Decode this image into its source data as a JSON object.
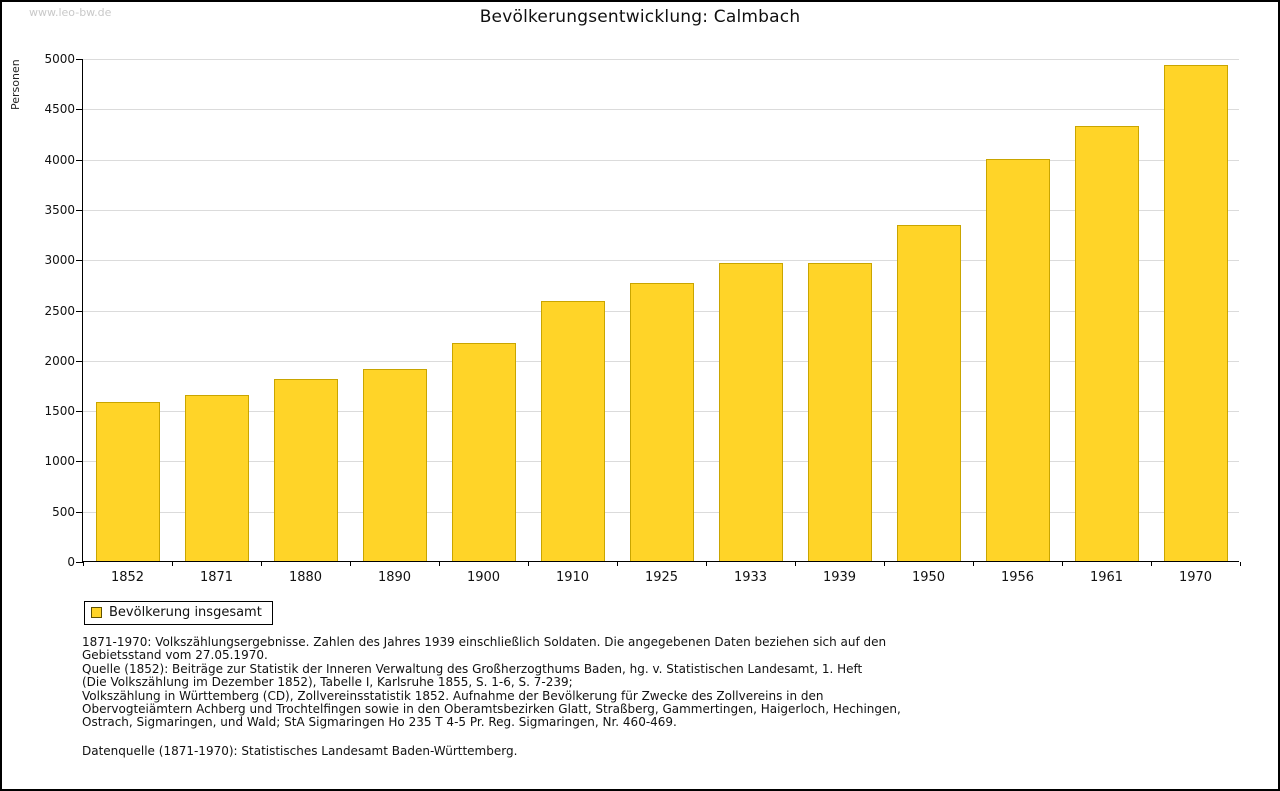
{
  "watermark": "www.leo-bw.de",
  "title": "Bevölkerungsentwicklung: Calmbach",
  "legend": {
    "label": "Bevölkerung insgesamt"
  },
  "colors": {
    "bar_fill": "#FFD428",
    "bar_border": "#C9A500",
    "gridline": "#DBDBDB",
    "axis": "#000000",
    "watermark": "#C9C9C9"
  },
  "chart_data": {
    "type": "bar",
    "title": "Bevölkerungsentwicklung: Calmbach",
    "xlabel": "",
    "ylabel": "Personen",
    "categories": [
      "1852",
      "1871",
      "1880",
      "1890",
      "1900",
      "1910",
      "1925",
      "1933",
      "1939",
      "1950",
      "1956",
      "1961",
      "1970"
    ],
    "values": [
      1580,
      1650,
      1810,
      1910,
      2170,
      2580,
      2760,
      2960,
      2960,
      3340,
      4000,
      4320,
      4930
    ],
    "series_name": "Bevölkerung insgesamt",
    "ylim": [
      0,
      5000
    ],
    "ytick_step": 500,
    "grid": true,
    "legend_position": "bottom-left"
  },
  "notes": {
    "lines": [
      "1871-1970: Volkszählungsergebnisse. Zahlen des Jahres 1939 einschließlich Soldaten. Die angegebenen Daten beziehen sich auf den",
      "Gebietsstand vom 27.05.1970.",
      "Quelle (1852): Beiträge zur Statistik der Inneren Verwaltung des Großherzogthums Baden, hg. v. Statistischen Landesamt, 1. Heft",
      "(Die Volkszählung im Dezember 1852), Tabelle I, Karlsruhe 1855, S. 1-6, S. 7-239;",
      "Volkszählung in Württemberg (CD), Zollvereinsstatistik 1852. Aufnahme der Bevölkerung für Zwecke des Zollvereins in den",
      "Obervogteiämtern Achberg und Trochtelfingen sowie in den Oberamtsbezirken Glatt, Straßberg, Gammertingen, Haigerloch, Hechingen,",
      "Ostrach, Sigmaringen, und Wald; StA Sigmaringen Ho 235 T 4-5 Pr. Reg. Sigmaringen, Nr. 460-469."
    ],
    "datasource": "Datenquelle (1871-1970): Statistisches Landesamt Baden-Württemberg."
  }
}
